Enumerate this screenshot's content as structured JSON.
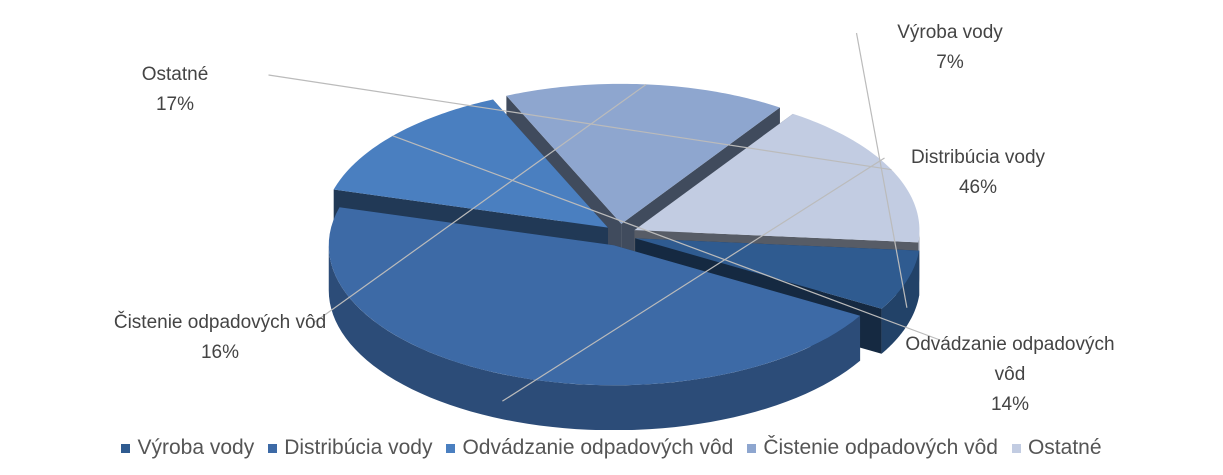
{
  "chart_data": {
    "type": "pie",
    "categories": [
      "Výroba vody",
      "Distribúcia vody",
      "Odvádzanie odpadových vôd",
      "Čistenie odpadových vôd",
      "Ostatné"
    ],
    "values": [
      7,
      46,
      14,
      16,
      17
    ],
    "value_labels": [
      "7%",
      "46%",
      "14%",
      "16%",
      "17%"
    ],
    "colors": [
      "#2f5b90",
      "#3d6aa6",
      "#4a7fc0",
      "#8ea6cf",
      "#c2cce2"
    ],
    "legend": "bottom"
  }
}
